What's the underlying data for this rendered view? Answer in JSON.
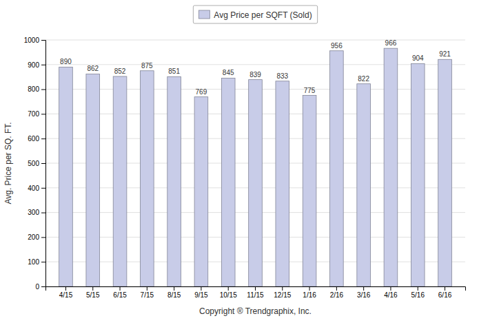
{
  "chart_data": {
    "type": "bar",
    "categories": [
      "4/15",
      "5/15",
      "6/15",
      "7/15",
      "8/15",
      "9/15",
      "10/15",
      "11/15",
      "12/15",
      "1/16",
      "2/16",
      "3/16",
      "4/16",
      "5/16",
      "6/16"
    ],
    "series": [
      {
        "name": "Avg Price per SQFT (Sold)",
        "color": "#c8cce8",
        "values": [
          890,
          862,
          852,
          875,
          851,
          769,
          845,
          839,
          833,
          775,
          956,
          822,
          966,
          904,
          921
        ]
      }
    ],
    "ylabel": "Avg. Price per SQ. FT.",
    "xlabel": "Copyright ® Trendgraphix, Inc.",
    "ylim": [
      0,
      1000
    ],
    "yticks": [
      0,
      100,
      200,
      300,
      400,
      500,
      600,
      700,
      800,
      900,
      1000
    ],
    "grid": true,
    "legend": "top",
    "data_labels": true
  }
}
